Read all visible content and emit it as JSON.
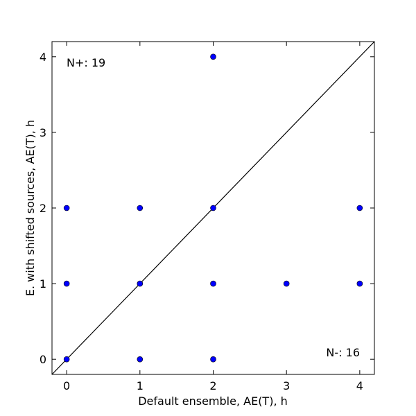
{
  "chart_data": {
    "type": "scatter",
    "xlabel": "Default ensemble, AE(T), h",
    "ylabel": "E. with shifted sources, AE(T), h",
    "xlim": [
      -0.2,
      4.2
    ],
    "ylim": [
      -0.2,
      4.2
    ],
    "xticks": [
      0,
      1,
      2,
      3,
      4
    ],
    "yticks": [
      0,
      1,
      2,
      3,
      4
    ],
    "grid": false,
    "reference_line": "y = x",
    "marker_color": "#0000ff",
    "line_color": "#000000",
    "points": [
      {
        "x": 0,
        "y": 0
      },
      {
        "x": 0,
        "y": 1
      },
      {
        "x": 0,
        "y": 2
      },
      {
        "x": 1,
        "y": 0
      },
      {
        "x": 1,
        "y": 1
      },
      {
        "x": 1,
        "y": 2
      },
      {
        "x": 2,
        "y": 0
      },
      {
        "x": 2,
        "y": 1
      },
      {
        "x": 2,
        "y": 2
      },
      {
        "x": 2,
        "y": 4
      },
      {
        "x": 3,
        "y": 1
      },
      {
        "x": 4,
        "y": 1
      },
      {
        "x": 4,
        "y": 2
      }
    ],
    "annotations": {
      "top_left": "N+: 19",
      "bottom_right": "N-: 16"
    }
  }
}
